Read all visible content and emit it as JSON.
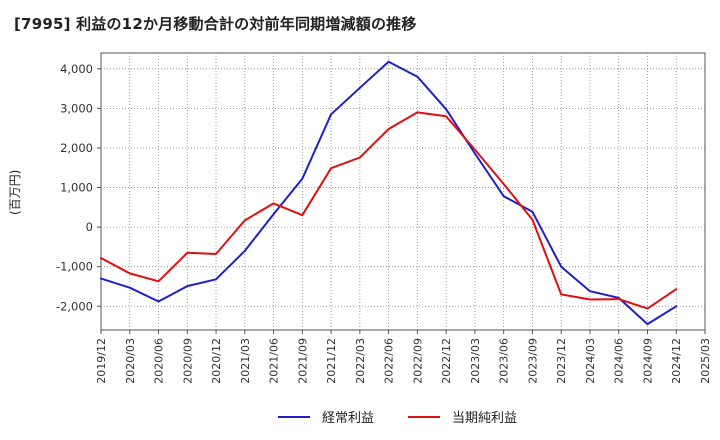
{
  "chart_data": {
    "type": "line",
    "title": "[7995]  利益の12か月移動合計の対前年同期増減額の推移",
    "ylabel": "(百万円)",
    "xlabel": "",
    "ylim": [
      -2600,
      4400
    ],
    "yticks": [
      -2000,
      -1000,
      0,
      1000,
      2000,
      3000,
      4000
    ],
    "ytick_labels": [
      "-2,000",
      "-1,000",
      "0",
      "1,000",
      "2,000",
      "3,000",
      "4,000"
    ],
    "grid": true,
    "legend_position": "bottom-center",
    "categories": [
      "2019/12",
      "2020/03",
      "2020/06",
      "2020/09",
      "2020/12",
      "2021/03",
      "2021/06",
      "2021/09",
      "2021/12",
      "2022/03",
      "2022/06",
      "2022/09",
      "2022/12",
      "2023/03",
      "2023/06",
      "2023/09",
      "2023/12",
      "2024/03",
      "2024/06",
      "2024/09",
      "2024/12",
      "2025/03"
    ],
    "series": [
      {
        "name": "経常利益",
        "color": "#1f1fcc",
        "values": [
          -1300,
          -1530,
          -1880,
          -1490,
          -1320,
          -600,
          330,
          1220,
          2850,
          3520,
          4180,
          3800,
          2980,
          1860,
          780,
          390,
          -1000,
          -1620,
          -1790,
          -2450,
          -2000,
          null
        ]
      },
      {
        "name": "当期純利益",
        "color": "#e01010",
        "values": [
          -780,
          -1170,
          -1370,
          -650,
          -680,
          170,
          600,
          300,
          1490,
          1760,
          2480,
          2900,
          2800,
          1960,
          1090,
          190,
          -1700,
          -1830,
          -1820,
          -2060,
          -1570,
          null
        ]
      }
    ]
  }
}
